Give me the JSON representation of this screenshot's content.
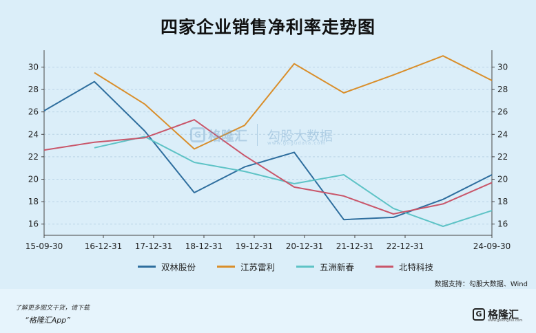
{
  "chart_data": {
    "type": "line",
    "title": "四家企业销售净利率走势图",
    "x_ticks": [
      "15-09-30",
      "16-12-31",
      "17-12-31",
      "18-12-31",
      "19-12-31",
      "20-12-31",
      "21-12-31",
      "22-12-31",
      "24-09-30"
    ],
    "x": [
      "15-09-30",
      "16-12-31",
      "17-12-31",
      "18-12-31",
      "19-12-31",
      "20-12-31",
      "21-12-31",
      "22-12-31",
      "23-12-31",
      "24-09-30"
    ],
    "ylim": [
      15,
      31.5
    ],
    "y_ticks": [
      16,
      18,
      20,
      22,
      24,
      26,
      28,
      30
    ],
    "grid": true,
    "legend_position": "bottom",
    "series": [
      {
        "name": "双林股份",
        "color": "#2e6e9e",
        "values": [
          26.1,
          28.7,
          24.3,
          18.8,
          21.1,
          22.4,
          16.4,
          16.6,
          18.2,
          20.4
        ]
      },
      {
        "name": "江苏雷利",
        "color": "#d98e2a",
        "values": [
          null,
          29.5,
          26.7,
          22.7,
          24.8,
          30.3,
          27.7,
          29.3,
          31.0,
          28.8
        ]
      },
      {
        "name": "五洲新春",
        "color": "#5ec3c6",
        "values": [
          null,
          22.8,
          23.8,
          21.5,
          20.7,
          19.6,
          20.4,
          17.4,
          15.8,
          17.2
        ]
      },
      {
        "name": "北特科技",
        "color": "#c9566a",
        "values": [
          22.6,
          23.3,
          23.7,
          25.3,
          22.1,
          19.3,
          18.5,
          16.9,
          17.8,
          19.7
        ]
      }
    ]
  },
  "watermark": {
    "brand": "格隆汇",
    "product": "勾股大数据",
    "url": "www.gogudata.com"
  },
  "source_text": "数据支持：勾股大数据、Wind",
  "footer": {
    "note": "了解更多图文干货，请下载",
    "app": "“格隆汇App”",
    "logo_text": "格隆汇",
    "logo_url": "www.gelonghui.com"
  }
}
